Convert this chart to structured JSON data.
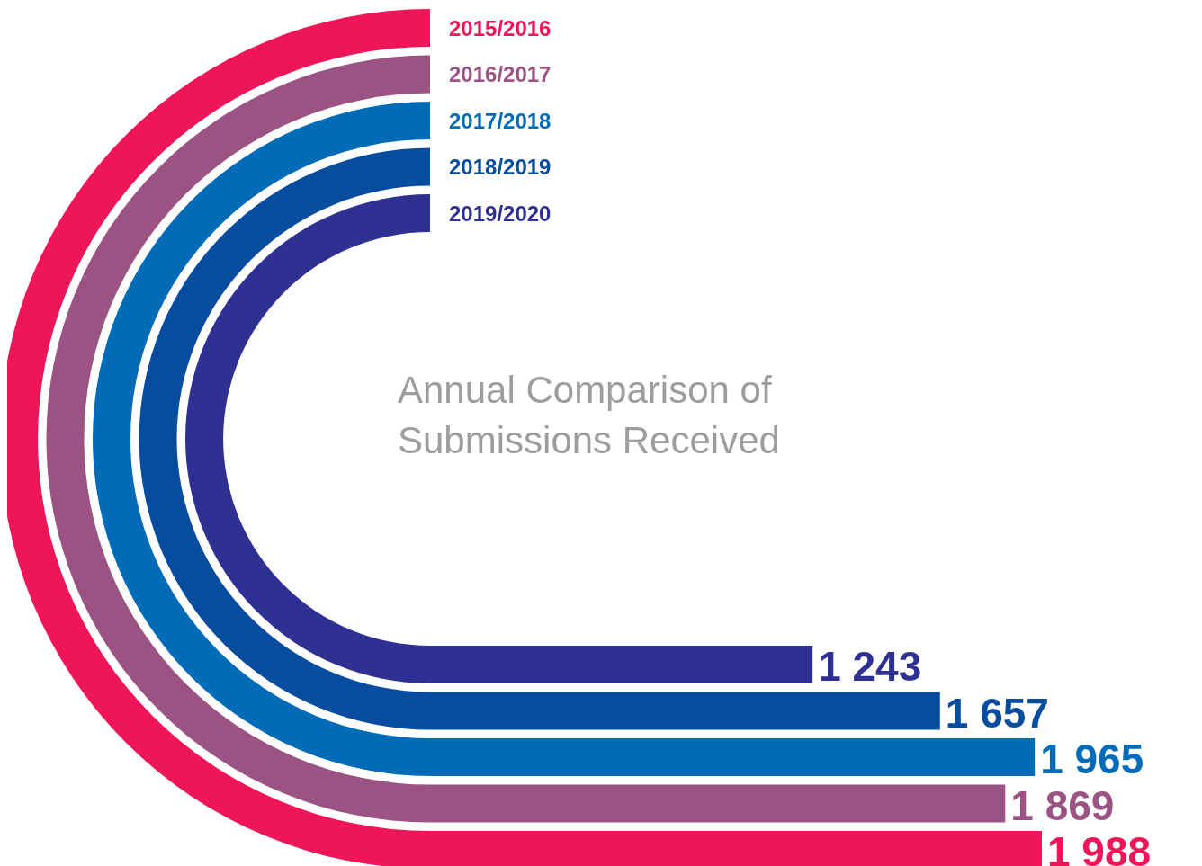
{
  "chart_data": {
    "type": "bar",
    "orientation": "horizontal",
    "title": "Annual Comparison of Submissions Received",
    "categories": [
      null
    ],
    "series": [
      {
        "name": "2019/2020",
        "color": "#2e3192",
        "values": [
          1243
        ],
        "value_labels": [
          "1 243"
        ]
      },
      {
        "name": "2018/2019",
        "color": "#064da0",
        "values": [
          1657
        ],
        "value_labels": [
          "1 657"
        ]
      },
      {
        "name": "2017/2018",
        "color": "#006bb6",
        "values": [
          1965
        ],
        "value_labels": [
          "1 965"
        ]
      },
      {
        "name": "2016/2017",
        "color": "#9b5383",
        "values": [
          1869
        ],
        "value_labels": [
          "1 869"
        ]
      },
      {
        "name": "2015/2016",
        "color": "#ee1558",
        "values": [
          1988
        ],
        "value_labels": [
          "1 988"
        ]
      }
    ]
  }
}
